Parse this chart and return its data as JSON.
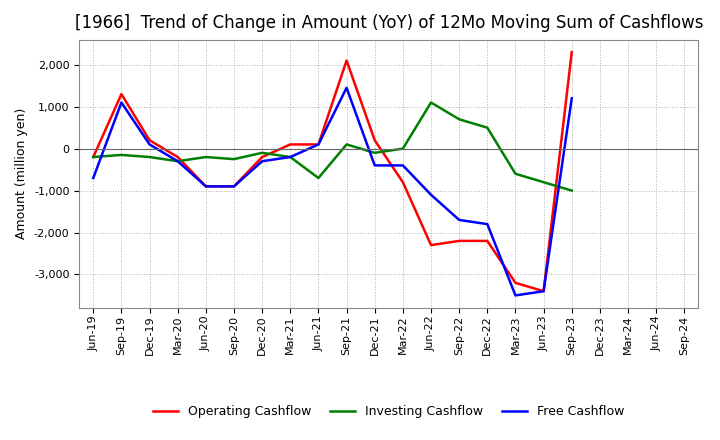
{
  "title": "[1966]  Trend of Change in Amount (YoY) of 12Mo Moving Sum of Cashflows",
  "ylabel": "Amount (million yen)",
  "x_labels": [
    "Jun-19",
    "Sep-19",
    "Dec-19",
    "Mar-20",
    "Jun-20",
    "Sep-20",
    "Dec-20",
    "Mar-21",
    "Jun-21",
    "Sep-21",
    "Dec-21",
    "Mar-22",
    "Jun-22",
    "Sep-22",
    "Dec-22",
    "Mar-23",
    "Jun-23",
    "Sep-23",
    "Dec-23",
    "Mar-24",
    "Jun-24",
    "Sep-24"
  ],
  "operating": [
    -200,
    1300,
    200,
    -200,
    -900,
    -900,
    -200,
    100,
    100,
    2100,
    200,
    -800,
    -2300,
    -2200,
    -2200,
    -3200,
    -3400,
    2300,
    null,
    null,
    null,
    null
  ],
  "investing": [
    -200,
    -150,
    -200,
    -300,
    -200,
    -250,
    -100,
    -200,
    -700,
    100,
    -100,
    0,
    1100,
    700,
    500,
    -600,
    -800,
    -1000,
    null,
    null,
    null,
    null
  ],
  "free": [
    -700,
    1100,
    100,
    -300,
    -900,
    -900,
    -300,
    -200,
    100,
    1450,
    -400,
    -400,
    -1100,
    -1700,
    -1800,
    -3500,
    -3400,
    1200,
    null,
    null,
    null,
    null
  ],
  "operating_color": "#ff0000",
  "investing_color": "#008000",
  "free_color": "#0000ff",
  "ylim": [
    -3800,
    2600
  ],
  "yticks": [
    -3000,
    -2000,
    -1000,
    0,
    1000,
    2000
  ],
  "background_color": "#ffffff",
  "grid_color": "#b0b0b0",
  "title_fontsize": 12,
  "axis_fontsize": 9,
  "tick_fontsize": 8,
  "legend_fontsize": 9,
  "linewidth": 1.8
}
